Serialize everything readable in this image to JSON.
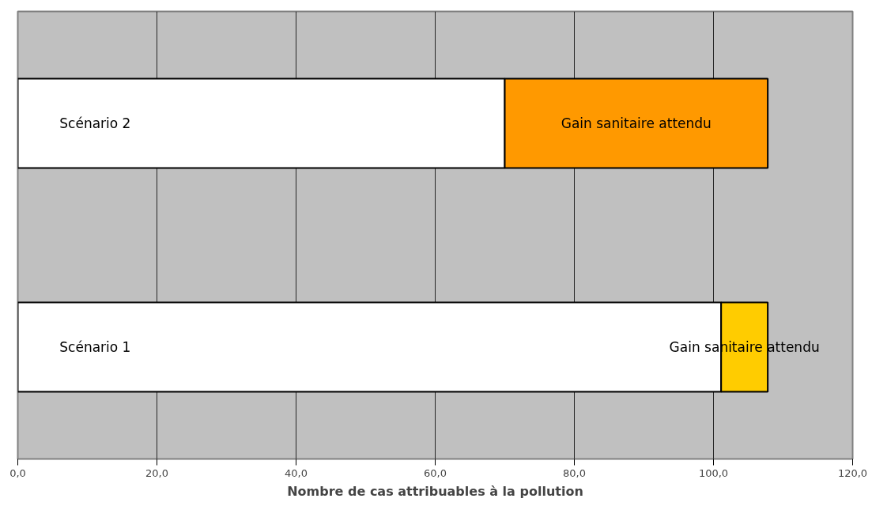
{
  "chart_data": {
    "type": "bar",
    "orientation": "horizontal",
    "stacked": true,
    "categories": [
      null,
      null
    ],
    "xlabel": "Nombre de cas attribuables à la pollution",
    "xlim": [
      0,
      120
    ],
    "xticks": [
      {
        "value": 0,
        "label": "0,0"
      },
      {
        "value": 20,
        "label": "20,0"
      },
      {
        "value": 40,
        "label": "40,0"
      },
      {
        "value": 60,
        "label": "60,0"
      },
      {
        "value": 80,
        "label": "80,0"
      },
      {
        "value": 100,
        "label": "100,0"
      },
      {
        "value": 120,
        "label": "120,0"
      }
    ],
    "grid": "x",
    "tick_labels": "x",
    "series": [
      {
        "color": "#ffffff",
        "values": [
          70.0,
          101.1
        ],
        "value_labels": [
          "Scénario 2",
          "Scénario 1"
        ]
      },
      {
        "colors": [
          "#ff9900",
          "#ffcc00"
        ],
        "values": [
          37.8,
          6.7
        ],
        "value_labels": [
          "Gain sanitaire attendu",
          "Gain sanitaire attendu"
        ]
      }
    ]
  }
}
